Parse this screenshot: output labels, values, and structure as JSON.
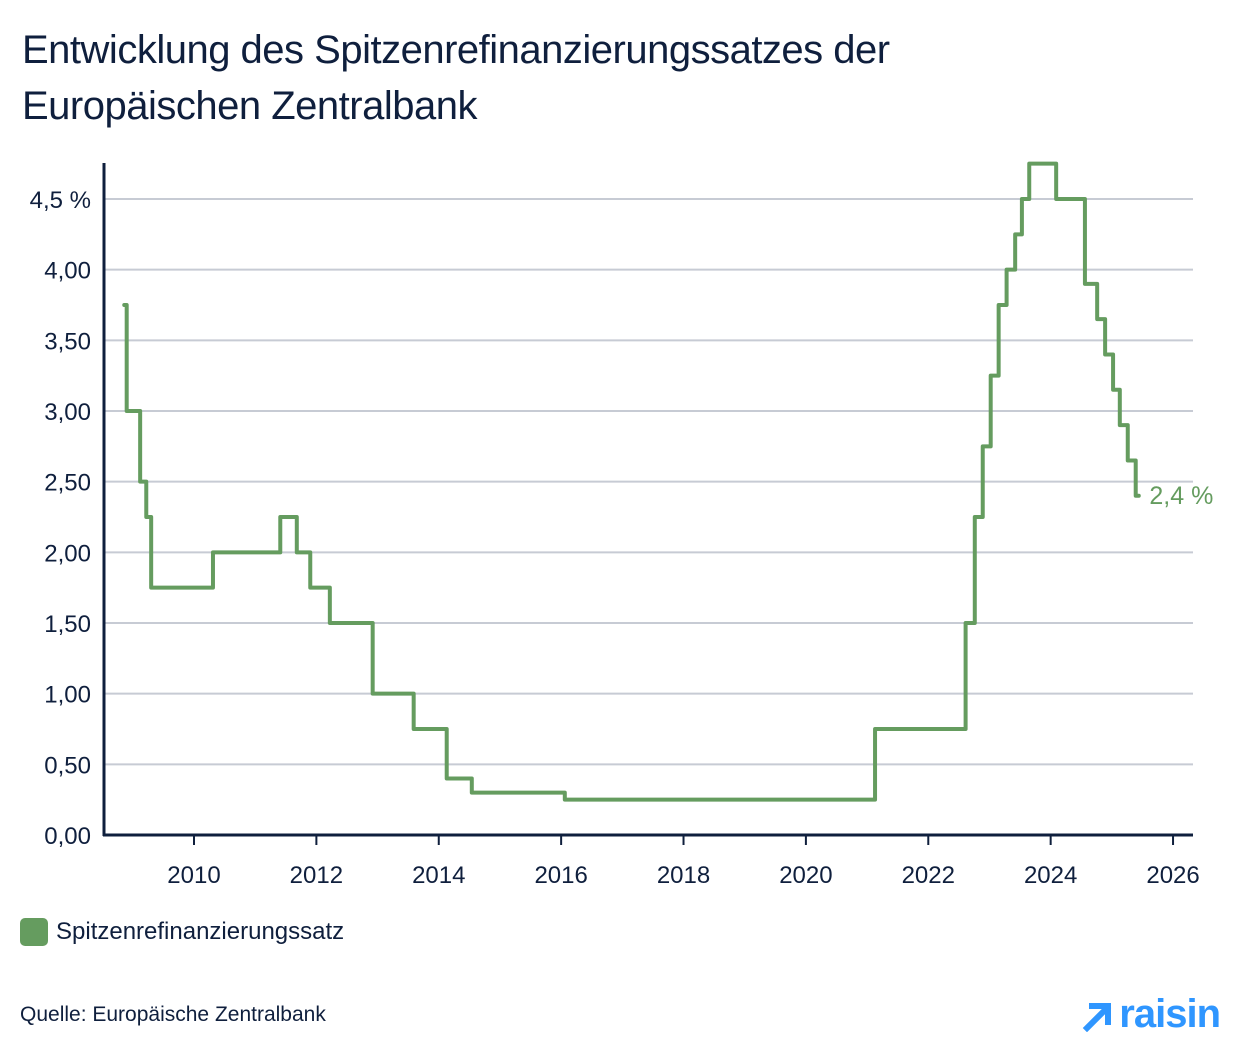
{
  "title": "Entwicklung des Spitzenrefinanzierungssatzes der Europäischen Zentralbank",
  "legend": {
    "label": "Spitzenrefinanzierungssatz",
    "color": "#659c5f"
  },
  "source": "Quelle: Europäische Zentralbank",
  "brand": {
    "name": "raisin",
    "color": "#2f96ff"
  },
  "end_label": "2,4 %",
  "colors": {
    "line": "#659c5f",
    "axis": "#0f1f3d",
    "grid": "#c7cbd4",
    "text": "#0f1f3d"
  },
  "chart_data": {
    "type": "line",
    "step": true,
    "title": "Entwicklung des Spitzenrefinanzierungssatzes der Europäischen Zentralbank",
    "xlabel": "",
    "ylabel": "",
    "xlim": [
      2008.5,
      2026.4
    ],
    "ylim": [
      0,
      4.75
    ],
    "grid": "horizontal",
    "legend_position": "bottom-left",
    "x_ticks": [
      2010,
      2012,
      2014,
      2016,
      2018,
      2020,
      2022,
      2024,
      2026
    ],
    "x_tick_labels": [
      "2010",
      "2012",
      "2014",
      "2016",
      "2018",
      "2020",
      "2022",
      "2024",
      "2026"
    ],
    "y_ticks": [
      0,
      0.5,
      1.0,
      1.5,
      2.0,
      2.5,
      3.0,
      3.5,
      4.0,
      4.5
    ],
    "y_tick_labels": [
      "0,00",
      "0,50",
      "1,00",
      "1,50",
      "2,00",
      "2,50",
      "3,00",
      "3,50",
      "4,00",
      "4,5 %"
    ],
    "annotations": [
      {
        "text": "2,4 %",
        "x": 2025.45,
        "y": 2.4
      }
    ],
    "series": [
      {
        "name": "Spitzenrefinanzierungssatz",
        "color": "#659c5f",
        "x": [
          2008.86,
          2008.9,
          2009.12,
          2009.22,
          2009.3,
          2010.31,
          2011.41,
          2011.68,
          2011.9,
          2012.22,
          2012.92,
          2013.59,
          2014.13,
          2014.54,
          2016.06,
          2021.13,
          2022.61,
          2022.76,
          2022.89,
          2023.02,
          2023.15,
          2023.28,
          2023.42,
          2023.53,
          2023.65,
          2024.09,
          2024.56,
          2024.76,
          2024.89,
          2025.02,
          2025.13,
          2025.26,
          2025.39,
          2025.44
        ],
        "values": [
          3.75,
          3.0,
          2.5,
          2.25,
          1.75,
          2.0,
          2.25,
          2.0,
          1.75,
          1.5,
          1.0,
          0.75,
          0.4,
          0.3,
          0.25,
          0.75,
          1.5,
          2.25,
          2.75,
          3.25,
          3.75,
          4.0,
          4.25,
          4.5,
          4.75,
          4.5,
          3.9,
          3.65,
          3.4,
          3.15,
          2.9,
          2.65,
          2.4,
          2.4
        ]
      }
    ]
  }
}
